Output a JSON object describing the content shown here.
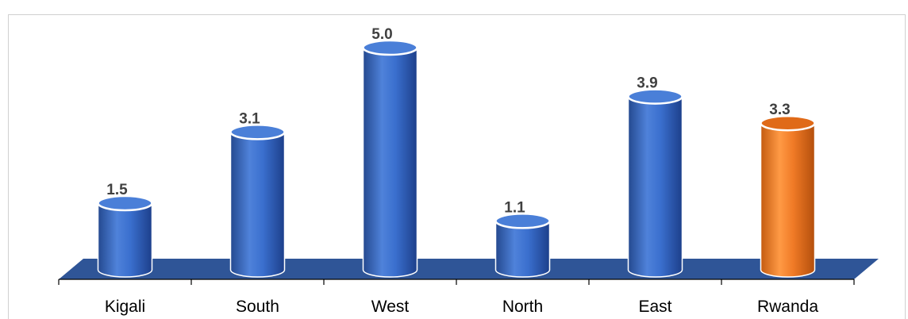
{
  "chart_data": {
    "type": "bar",
    "title": "",
    "categories": [
      "Kigali",
      "South",
      "West",
      "North",
      "East",
      "Rwanda"
    ],
    "values": [
      1.5,
      3.1,
      5.0,
      1.1,
      3.9,
      3.3
    ],
    "data_labels": [
      "1.5",
      "3.1",
      "5.0",
      "1.1",
      "3.9",
      "3.3"
    ],
    "highlight_category": "Rwanda",
    "xlabel": "",
    "ylabel": "",
    "ylim": [
      0,
      5.0
    ],
    "grid": false,
    "legend": "none",
    "style": "3d-cylinder",
    "colors": {
      "bar": "#3a6fce",
      "bar_dark": "#1d3f8a",
      "bar_top": "#4a7fd8",
      "highlight": "#f07a26",
      "highlight_dark": "#b34f0c",
      "highlight_top": "#e06a18",
      "floor": "#2f5597",
      "axis": "#000000",
      "data_label": "#404040"
    }
  }
}
